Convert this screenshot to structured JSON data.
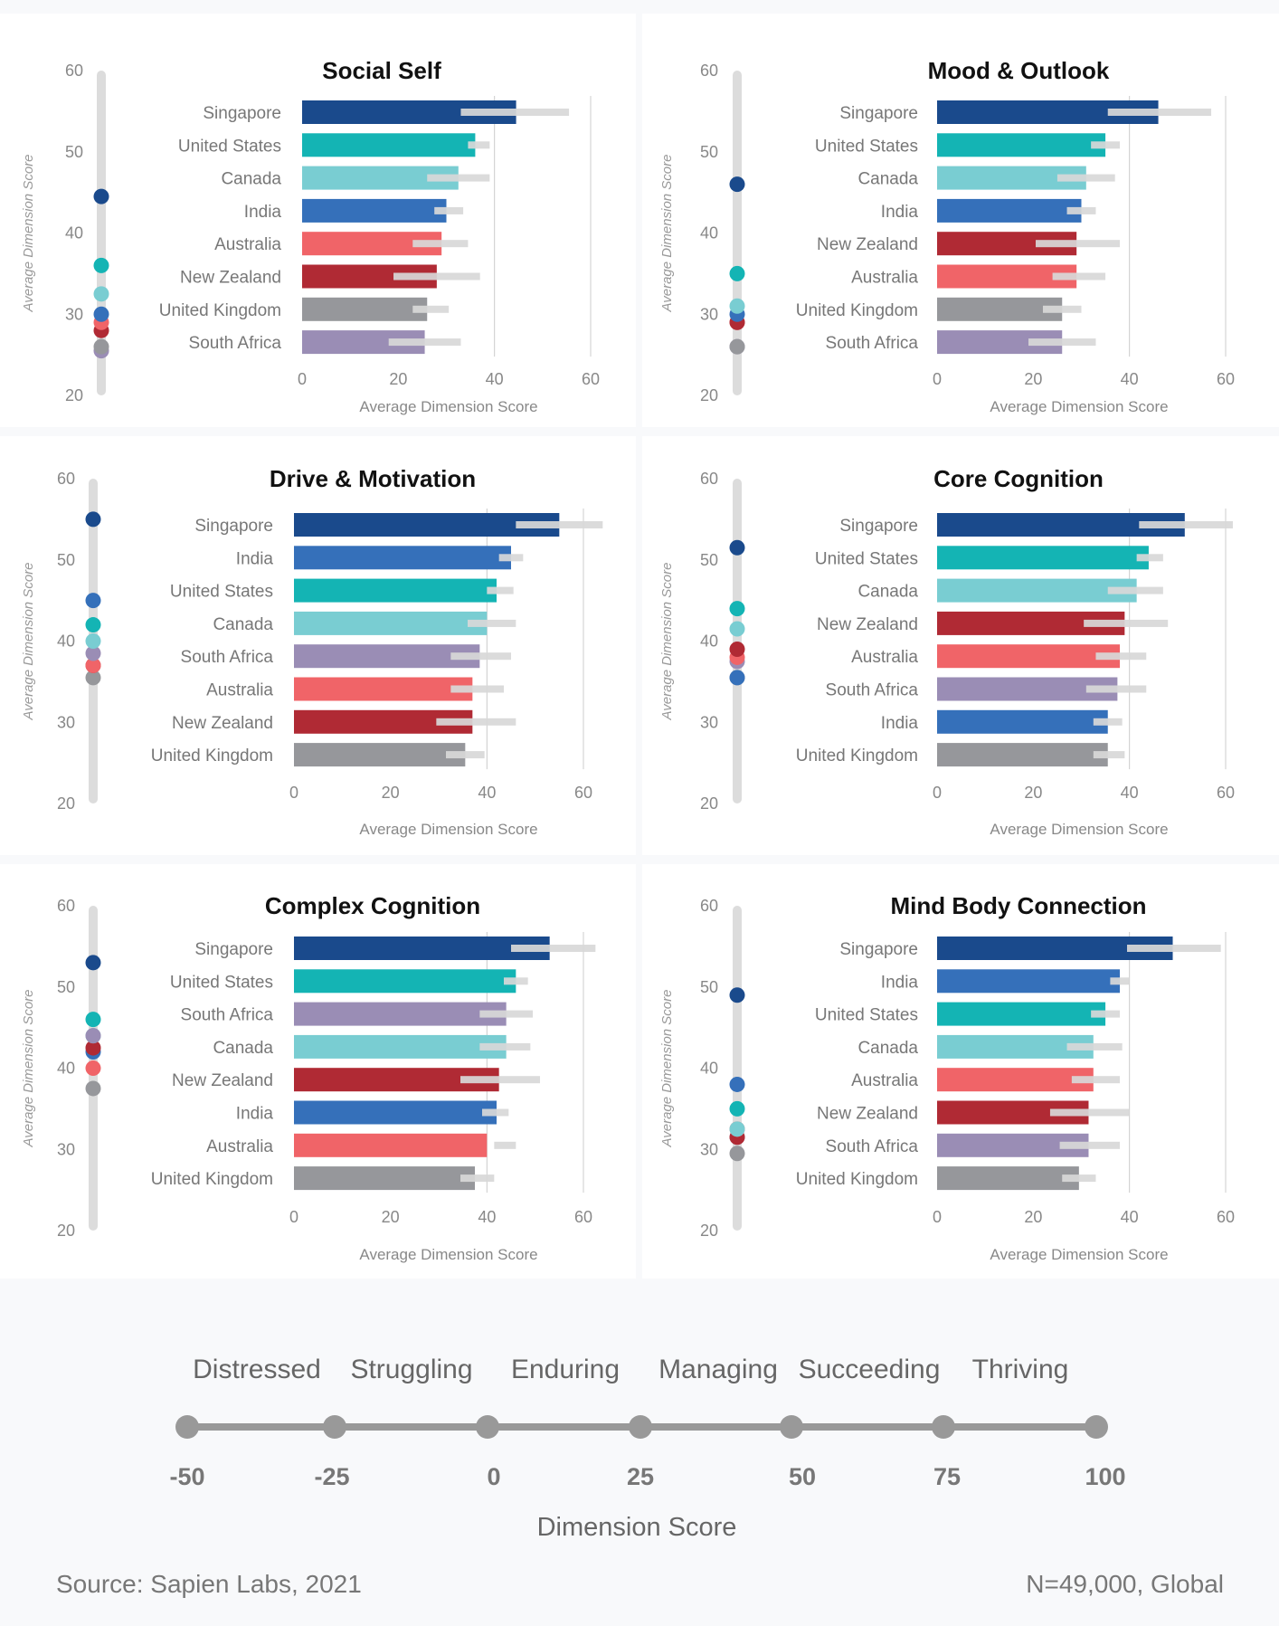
{
  "colors": {
    "Singapore": "#1a4a8c",
    "United States": "#14b4b4",
    "Canada": "#79cdd2",
    "India": "#3570ba",
    "Australia": "#f06468",
    "New Zealand": "#b02a34",
    "United Kingdom": "#96979b",
    "South Africa": "#9a8db5",
    "range_bar": "#d8d8d8",
    "scale_line": "#999999"
  },
  "chart_data": [
    {
      "type": "bar",
      "title": "Social Self",
      "xlabel": "Average Dimension Score",
      "ylabel": "Average Dimension Score",
      "xlim": [
        0,
        60
      ],
      "xticks": [
        "0",
        "20",
        "40",
        "60"
      ],
      "ylim": [
        20,
        60
      ],
      "yticks": [
        "20",
        "30",
        "40",
        "50",
        "60"
      ],
      "categories": [
        "Singapore",
        "United States",
        "Canada",
        "India",
        "Australia",
        "New Zealand",
        "United Kingdom",
        "South Africa"
      ],
      "values": [
        44.5,
        36,
        32.5,
        30,
        29,
        28,
        26,
        25.5
      ],
      "ranges": [
        [
          33,
          55.5
        ],
        [
          34.5,
          39
        ],
        [
          26,
          39
        ],
        [
          27.5,
          33.5
        ],
        [
          23,
          34.5
        ],
        [
          19,
          37
        ],
        [
          23,
          30.5
        ],
        [
          18,
          33
        ]
      ]
    },
    {
      "type": "bar",
      "title": "Mood & Outlook",
      "xlabel": "Average Dimension Score",
      "ylabel": "Average Dimension Score",
      "xlim": [
        0,
        60
      ],
      "xticks": [
        "0",
        "20",
        "40",
        "60"
      ],
      "ylim": [
        20,
        60
      ],
      "yticks": [
        "20",
        "30",
        "40",
        "50",
        "60"
      ],
      "categories": [
        "Singapore",
        "United States",
        "Canada",
        "India",
        "New Zealand",
        "Australia",
        "United Kingdom",
        "South Africa"
      ],
      "values": [
        46,
        35,
        31,
        30,
        29,
        29,
        26,
        26
      ],
      "ranges": [
        [
          35.5,
          57
        ],
        [
          32,
          38
        ],
        [
          25,
          37
        ],
        [
          27,
          33
        ],
        [
          20.5,
          38
        ],
        [
          24,
          35
        ],
        [
          22,
          30
        ],
        [
          19,
          33
        ]
      ]
    },
    {
      "type": "bar",
      "title": "Drive & Motivation",
      "xlabel": "Average Dimension Score",
      "ylabel": "Average Dimension Score",
      "xlim": [
        0,
        60
      ],
      "xticks": [
        "0",
        "20",
        "40",
        "60"
      ],
      "ylim": [
        20,
        60
      ],
      "yticks": [
        "20",
        "30",
        "40",
        "50",
        "60"
      ],
      "categories": [
        "Singapore",
        "India",
        "United States",
        "Canada",
        "South Africa",
        "Australia",
        "New Zealand",
        "United Kingdom"
      ],
      "values": [
        55,
        45,
        42,
        40,
        38.5,
        37,
        37,
        35.5
      ],
      "ranges": [
        [
          46,
          64
        ],
        [
          42.5,
          47.5
        ],
        [
          40,
          45.5
        ],
        [
          36,
          46
        ],
        [
          32.5,
          45
        ],
        [
          32.5,
          43.5
        ],
        [
          29.5,
          46
        ],
        [
          31.5,
          39.5
        ]
      ]
    },
    {
      "type": "bar",
      "title": "Core Cognition",
      "xlabel": "Average Dimension Score",
      "ylabel": "Average Dimension Score",
      "xlim": [
        0,
        60
      ],
      "xticks": [
        "0",
        "20",
        "40",
        "60"
      ],
      "ylim": [
        20,
        60
      ],
      "yticks": [
        "20",
        "30",
        "40",
        "50",
        "60"
      ],
      "categories": [
        "Singapore",
        "United States",
        "Canada",
        "New Zealand",
        "Australia",
        "South Africa",
        "India",
        "United Kingdom"
      ],
      "values": [
        51.5,
        44,
        41.5,
        39,
        38,
        37.5,
        35.5,
        35.5
      ],
      "ranges": [
        [
          42,
          61.5
        ],
        [
          41.5,
          47
        ],
        [
          35.5,
          47
        ],
        [
          30.5,
          48
        ],
        [
          33,
          43.5
        ],
        [
          31,
          43.5
        ],
        [
          32.5,
          38.5
        ],
        [
          32.5,
          39
        ]
      ]
    },
    {
      "type": "bar",
      "title": "Complex Cognition",
      "xlabel": "Average Dimension Score",
      "ylabel": "Average Dimension Score",
      "xlim": [
        0,
        60
      ],
      "xticks": [
        "0",
        "20",
        "40",
        "60"
      ],
      "ylim": [
        20,
        60
      ],
      "yticks": [
        "20",
        "30",
        "40",
        "50",
        "60"
      ],
      "categories": [
        "Singapore",
        "United States",
        "South Africa",
        "Canada",
        "New Zealand",
        "India",
        "Australia",
        "United Kingdom"
      ],
      "values": [
        53,
        46,
        44,
        44,
        42.5,
        42,
        40,
        37.5
      ],
      "ranges": [
        [
          45,
          62.5
        ],
        [
          43.5,
          48.5
        ],
        [
          38.5,
          49.5
        ],
        [
          38.5,
          49
        ],
        [
          34.5,
          51
        ],
        [
          39,
          44.5
        ],
        [
          41.5,
          46
        ],
        [
          34.5,
          41.5
        ]
      ]
    },
    {
      "type": "bar",
      "title": "Mind Body Connection",
      "xlabel": "Average Dimension Score",
      "ylabel": "Average Dimension Score",
      "xlim": [
        0,
        60
      ],
      "xticks": [
        "0",
        "20",
        "40",
        "60"
      ],
      "ylim": [
        20,
        60
      ],
      "yticks": [
        "20",
        "30",
        "40",
        "50",
        "60"
      ],
      "categories": [
        "Singapore",
        "India",
        "United States",
        "Canada",
        "Australia",
        "New Zealand",
        "South Africa",
        "United Kingdom"
      ],
      "values": [
        49,
        38,
        35,
        32.5,
        32.5,
        31.5,
        31.5,
        29.5
      ],
      "ranges": [
        [
          39.5,
          59
        ],
        [
          36,
          40
        ],
        [
          32,
          38
        ],
        [
          27,
          38.5
        ],
        [
          28,
          38
        ],
        [
          23.5,
          40
        ],
        [
          25.5,
          38
        ],
        [
          26,
          33
        ]
      ]
    }
  ],
  "scale": {
    "labels": [
      "Distressed",
      "Struggling",
      "Enduring",
      "Managing",
      "Succeeding",
      "Thriving"
    ],
    "ticks": [
      "-50",
      "-25",
      "0",
      "25",
      "50",
      "75",
      "100"
    ],
    "title": "Dimension Score"
  },
  "footer": {
    "source": "Source: Sapien Labs, 2021",
    "sample": "N=49,000, Global"
  }
}
